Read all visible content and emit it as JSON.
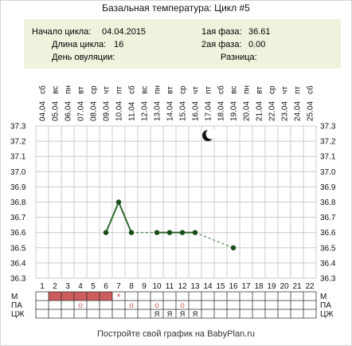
{
  "title": "Базальная температура: Цикл #5",
  "info": {
    "start_label": "Начало цикла:",
    "start_value": "04.04.2015",
    "length_label": "Длина цикла:",
    "length_value": "16",
    "ovulation_label": "День овуляции:",
    "ovulation_value": "",
    "phase1_label": "1ая фаза:",
    "phase1_value": "36.61",
    "phase2_label": "2ая фаза:",
    "phase2_value": "0.00",
    "diff_label": "Разница:",
    "diff_value": ""
  },
  "footer": "Постройте свой график на BabyPlan.ru",
  "colors": {
    "grid": "#cccccc",
    "line": "#2e6b2e",
    "point": "#1a4d1a",
    "period": "#cd5c5c",
    "marker": "#cd5c5c"
  },
  "moon_icon": "crescent-moon-icon",
  "chart_data": {
    "type": "line",
    "title": "Базальная температура: Цикл #5",
    "weekdays": [
      "сб",
      "вс",
      "пн",
      "вт",
      "ср",
      "чт",
      "пт",
      "сб",
      "вс",
      "пн",
      "вт",
      "ср",
      "чт",
      "пт",
      "сб",
      "вс",
      "пн",
      "вт",
      "ср",
      "чт",
      "пт",
      "сб"
    ],
    "dates": [
      "04.04",
      "05.04",
      "06.04",
      "07.04",
      "08.04",
      "09.04",
      "10.04",
      "11.04",
      "12.04",
      "13.04",
      "14.04",
      "15.04",
      "16.04",
      "17.04",
      "18.04",
      "19.04",
      "20.04",
      "21.04",
      "22.04",
      "23.04",
      "24.04",
      "25.04"
    ],
    "days": [
      1,
      2,
      3,
      4,
      5,
      6,
      7,
      8,
      9,
      10,
      11,
      12,
      13,
      14,
      15,
      16,
      17,
      18,
      19,
      20,
      21,
      22
    ],
    "ylim": [
      36.3,
      37.3
    ],
    "yticks": [
      "37.3",
      "37.2",
      "37.1",
      "37.0",
      "36.9",
      "36.8",
      "36.7",
      "36.6",
      "36.5",
      "36.4",
      "36.3"
    ],
    "series": [
      {
        "points": [
          {
            "x": 6,
            "y": 36.6
          },
          {
            "x": 7,
            "y": 36.8
          },
          {
            "x": 8,
            "y": 36.6
          },
          {
            "x": 10,
            "y": 36.6
          },
          {
            "x": 11,
            "y": 36.6
          },
          {
            "x": 12,
            "y": 36.6
          },
          {
            "x": 13,
            "y": 36.6
          },
          {
            "x": 16,
            "y": 36.5
          }
        ]
      }
    ],
    "dashed_segments": [
      [
        8,
        10
      ],
      [
        13,
        16
      ]
    ],
    "moon_day": 14,
    "bottom_rows": {
      "labels": [
        "М",
        "ПА",
        "ЦЖ"
      ],
      "period_days": [
        2,
        3,
        4,
        5,
        6
      ],
      "star_day": 7,
      "star_symbol": "*",
      "pa_circles": [
        4,
        8,
        10,
        12
      ],
      "pa_circle_symbol": "о",
      "cj_marks": [
        {
          "day": 10,
          "text": "Я"
        },
        {
          "day": 11,
          "text": "Я"
        },
        {
          "day": 12,
          "text": "Я"
        },
        {
          "day": 13,
          "text": "Я"
        }
      ]
    },
    "grid": true
  }
}
